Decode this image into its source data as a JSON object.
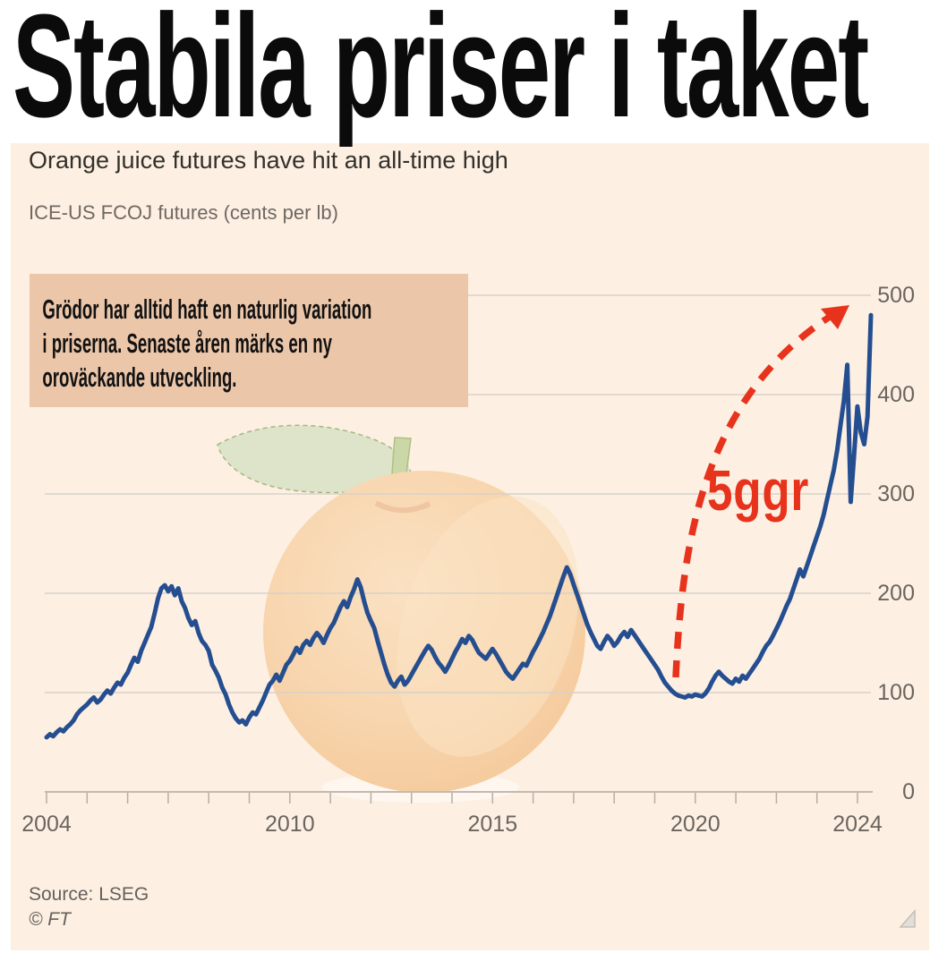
{
  "headline": "Stabila priser i taket",
  "chart": {
    "title": "Orange juice futures have hit an all-time high",
    "subtitle": "ICE-US FCOJ futures (cents per lb)",
    "annotation": "Grödor har alltid haft en naturlig variation\ni priserna. Senaste åren märks en ny\noroväckande utveckling.",
    "callout": "5ggr",
    "source": "Source: LSEG",
    "credit": "© FT"
  },
  "chart_data": {
    "type": "line",
    "title": "Orange juice futures have hit an all-time high",
    "subtitle": "ICE-US FCOJ futures (cents per lb)",
    "series": [
      {
        "name": "ICE-US FCOJ futures (cents per lb)",
        "start_year": 2004,
        "points_per_month": 1,
        "values": [
          55,
          58,
          56,
          60,
          63,
          61,
          65,
          68,
          72,
          78,
          82,
          85,
          88,
          92,
          95,
          90,
          93,
          98,
          102,
          99,
          105,
          110,
          108,
          115,
          120,
          128,
          135,
          131,
          142,
          150,
          158,
          166,
          180,
          195,
          205,
          208,
          202,
          207,
          198,
          205,
          192,
          185,
          175,
          168,
          172,
          160,
          152,
          148,
          142,
          128,
          122,
          115,
          105,
          98,
          88,
          80,
          74,
          70,
          72,
          68,
          75,
          80,
          78,
          85,
          92,
          100,
          108,
          112,
          118,
          112,
          120,
          128,
          132,
          138,
          145,
          140,
          148,
          152,
          148,
          155,
          160,
          156,
          150,
          158,
          165,
          170,
          178,
          186,
          192,
          186,
          196,
          204,
          214,
          206,
          192,
          180,
          172,
          165,
          152,
          140,
          128,
          118,
          110,
          106,
          112,
          116,
          108,
          112,
          118,
          124,
          130,
          136,
          142,
          147,
          143,
          136,
          130,
          126,
          121,
          127,
          134,
          141,
          147,
          154,
          150,
          157,
          153,
          146,
          140,
          137,
          134,
          139,
          144,
          139,
          133,
          127,
          121,
          117,
          114,
          119,
          124,
          129,
          127,
          134,
          141,
          147,
          154,
          161,
          169,
          177,
          187,
          197,
          207,
          217,
          226,
          219,
          209,
          199,
          189,
          179,
          169,
          161,
          154,
          147,
          144,
          151,
          157,
          153,
          147,
          151,
          157,
          161,
          156,
          163,
          158,
          153,
          148,
          143,
          138,
          133,
          128,
          123,
          116,
          110,
          106,
          102,
          99,
          97,
          96,
          95,
          97,
          96,
          98,
          97,
          96,
          99,
          104,
          111,
          117,
          121,
          117,
          114,
          111,
          109,
          114,
          111,
          117,
          114,
          119,
          124,
          129,
          134,
          141,
          147,
          151,
          157,
          164,
          171,
          179,
          187,
          194,
          204,
          214,
          224,
          217,
          227,
          237,
          247,
          257,
          267,
          279,
          294,
          309,
          324,
          344,
          369,
          394,
          430,
          292,
          338,
          388,
          362,
          350,
          378,
          480
        ]
      }
    ],
    "xlim": [
      2004,
      2024.33
    ],
    "ylim": [
      0,
      500
    ],
    "y_ticks": [
      0,
      100,
      200,
      300,
      400,
      500
    ],
    "x_tick_years_minor_step": 1,
    "x_tick_labels": [
      2004,
      2010,
      2015,
      2020,
      2024
    ],
    "grid": "horizontal-only",
    "legend": "none",
    "annotation_text": "Grödor har alltid haft en naturlig variation i priserna. Senaste åren märks en ny oroväckande utveckling.",
    "callout_label": "5ggr",
    "colors": {
      "background": "#fdf0e3",
      "annotation_box": "#ecc6a9",
      "line": "#254e90",
      "accent_red": "#e8331c",
      "gridline": "#d8d1c9",
      "axis": "#c2bab0",
      "tick": "#b6aea4",
      "text_dark": "#33302b",
      "text_gray": "#6b655e"
    }
  }
}
